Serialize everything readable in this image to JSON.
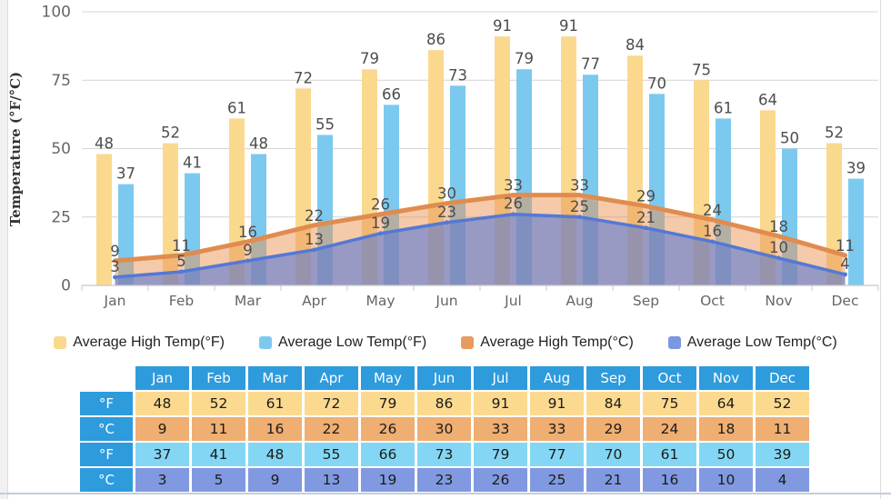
{
  "chart_data": {
    "type": "combo",
    "title": "",
    "xlabel": "",
    "ylabel": "Temperature (°F/°C)",
    "ylim": [
      0,
      100
    ],
    "yticks": [
      0,
      25,
      50,
      75,
      100
    ],
    "grid": true,
    "legend_position": "bottom",
    "categories": [
      "Jan",
      "Feb",
      "Mar",
      "Apr",
      "May",
      "Jun",
      "Jul",
      "Aug",
      "Sep",
      "Oct",
      "Nov",
      "Dec"
    ],
    "series": [
      {
        "name": "Average High Temp(°F)",
        "type": "bar",
        "color": "#FAD98F",
        "values": [
          48,
          52,
          61,
          72,
          79,
          86,
          91,
          91,
          84,
          75,
          64,
          52
        ]
      },
      {
        "name": "Average Low Temp(°F)",
        "type": "bar",
        "color": "#7CC9F0",
        "values": [
          37,
          41,
          48,
          55,
          66,
          73,
          79,
          77,
          70,
          61,
          50,
          39
        ]
      },
      {
        "name": "Average High Temp(°C)",
        "type": "area",
        "color": "#E08C4F",
        "fill": "rgba(233,150,85,0.50)",
        "values": [
          9,
          11,
          16,
          22,
          26,
          30,
          33,
          33,
          29,
          24,
          18,
          11
        ]
      },
      {
        "name": "Average Low Temp(°C)",
        "type": "area",
        "color": "#5578D5",
        "fill": "rgba(96,125,210,0.62)",
        "values": [
          3,
          5,
          9,
          13,
          19,
          23,
          26,
          25,
          21,
          16,
          10,
          4
        ]
      }
    ]
  },
  "legend": {
    "items": [
      {
        "id": "high-f",
        "label": "Average High Temp(°F)",
        "color": "#FAD98F"
      },
      {
        "id": "low-f",
        "label": "Average Low Temp(°F)",
        "color": "#7CC9F0"
      },
      {
        "id": "high-c",
        "label": "Average High Temp(°C)",
        "color": "#E89B60"
      },
      {
        "id": "low-c",
        "label": "Average Low Temp(°C)",
        "color": "#7D96E0"
      }
    ]
  },
  "table": {
    "corner": "",
    "header_bg": "#2E9BDD",
    "columns": [
      "Jan",
      "Feb",
      "Mar",
      "Apr",
      "May",
      "Jun",
      "Jul",
      "Aug",
      "Sep",
      "Oct",
      "Nov",
      "Dec"
    ],
    "rows": [
      {
        "label": "°F",
        "bg": "#FBDA90",
        "values": [
          48,
          52,
          61,
          72,
          79,
          86,
          91,
          91,
          84,
          75,
          64,
          52
        ]
      },
      {
        "label": "°C",
        "bg": "#EFAE72",
        "values": [
          9,
          11,
          16,
          22,
          26,
          30,
          33,
          33,
          29,
          24,
          18,
          11
        ]
      },
      {
        "label": "°F",
        "bg": "#84D7F4",
        "values": [
          37,
          41,
          48,
          55,
          66,
          73,
          79,
          77,
          70,
          61,
          50,
          39
        ]
      },
      {
        "label": "°C",
        "bg": "#8099E1",
        "values": [
          3,
          5,
          9,
          13,
          19,
          23,
          26,
          25,
          21,
          16,
          10,
          4
        ]
      }
    ]
  },
  "style": {
    "grid_color": "#d4d4d4",
    "axis_color": "#c8c8c8",
    "tick_label_color": "#666666",
    "value_label_color": "#4d4d4d",
    "axis_title_color": "#333333"
  }
}
